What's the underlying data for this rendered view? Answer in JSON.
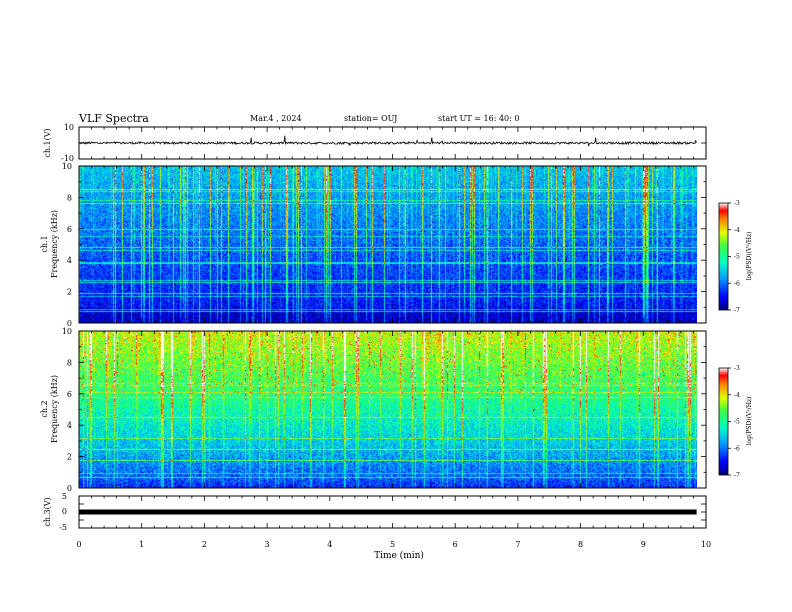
{
  "header": {
    "title": "VLF Spectra",
    "date": "Mar.4 , 2024",
    "station": "station= OUJ",
    "start": "start UT = 16: 40: 0"
  },
  "chart_data": [
    {
      "type": "line",
      "ylabel": "ch.1(V)",
      "ylim": [
        -10,
        10
      ],
      "y_ticks": [
        "10",
        "-10"
      ],
      "description_values": {
        "baseline": 0,
        "noise_amplitude": 1
      }
    },
    {
      "type": "heatmap",
      "ylabel": "ch.1\nFrequency (kHz)",
      "ylabel_line1": "ch.1",
      "ylabel_line2": "Frequency (kHz)",
      "ylim": [
        0,
        10
      ],
      "y_ticks": [
        "0",
        "2",
        "4",
        "6",
        "8",
        "10"
      ],
      "colorbar": {
        "label": "log(PSD)(V²/Hz)",
        "range": [
          -7,
          -3
        ],
        "ticks": [
          "-3",
          "-4",
          "-5",
          "-6",
          "-7"
        ]
      }
    },
    {
      "type": "heatmap",
      "ylabel": "ch.2\nFrequency (kHz)",
      "ylabel_line1": "ch.2",
      "ylabel_line2": "Frequency (kHz)",
      "ylim": [
        0,
        10
      ],
      "y_ticks": [
        "0",
        "2",
        "4",
        "6",
        "8",
        "10"
      ],
      "colorbar": {
        "label": "log(PSD)(V²/Hz)",
        "range": [
          -7,
          -3
        ],
        "ticks": [
          "-3",
          "-4",
          "-5",
          "-6",
          "-7"
        ]
      }
    },
    {
      "type": "line",
      "ylabel": "ch.3(V)",
      "ylim": [
        -5,
        5
      ],
      "y_ticks": [
        "5",
        "0",
        "-5"
      ],
      "description_values": {
        "baseline": 0
      }
    }
  ],
  "xaxis": {
    "label": "Time (min)",
    "range": [
      0,
      10
    ],
    "ticks": [
      "0",
      "1",
      "2",
      "3",
      "4",
      "5",
      "6",
      "7",
      "8",
      "9",
      "10"
    ],
    "data_end": 9.85
  }
}
